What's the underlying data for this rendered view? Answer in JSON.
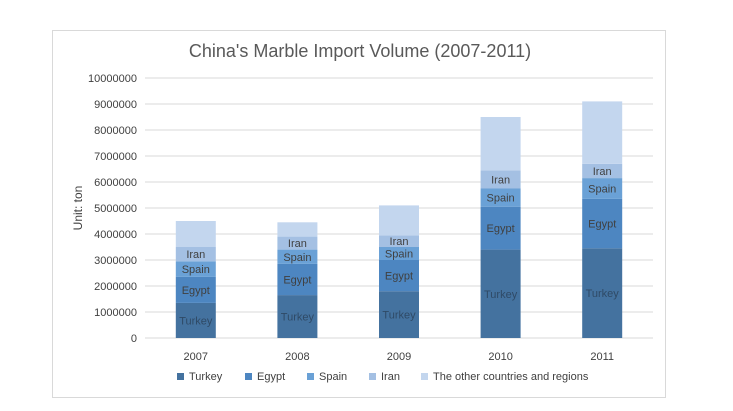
{
  "chart_data": {
    "type": "bar",
    "stacked": true,
    "title": "China's Marble Import Volume (2007-2011)",
    "ylabel": "Unit: ton",
    "xlabel": "",
    "ylim": [
      0,
      10000000
    ],
    "yticks": [
      0,
      1000000,
      2000000,
      3000000,
      4000000,
      5000000,
      6000000,
      7000000,
      8000000,
      9000000,
      10000000
    ],
    "grid": true,
    "legend_position": "bottom",
    "categories": [
      "2007",
      "2008",
      "2009",
      "2010",
      "2011"
    ],
    "series": [
      {
        "name": "Turkey",
        "label": "Turkey",
        "color": "#44729f",
        "values": [
          1350000,
          1650000,
          1800000,
          3400000,
          3450000
        ]
      },
      {
        "name": "Egypt",
        "label": "Egypt",
        "color": "#4d86c1",
        "values": [
          1000000,
          1200000,
          1200000,
          1650000,
          1900000
        ]
      },
      {
        "name": "Spain",
        "label": "Spain",
        "color": "#6aa1d6",
        "values": [
          600000,
          550000,
          500000,
          700000,
          800000
        ]
      },
      {
        "name": "Iran",
        "label": "Iran",
        "color": "#a4c0e3",
        "values": [
          550000,
          500000,
          450000,
          700000,
          550000
        ]
      },
      {
        "name": "The other countries and regions",
        "label": "",
        "color": "#c3d6ee",
        "values": [
          1000000,
          550000,
          1150000,
          2050000,
          2400000
        ]
      }
    ]
  }
}
